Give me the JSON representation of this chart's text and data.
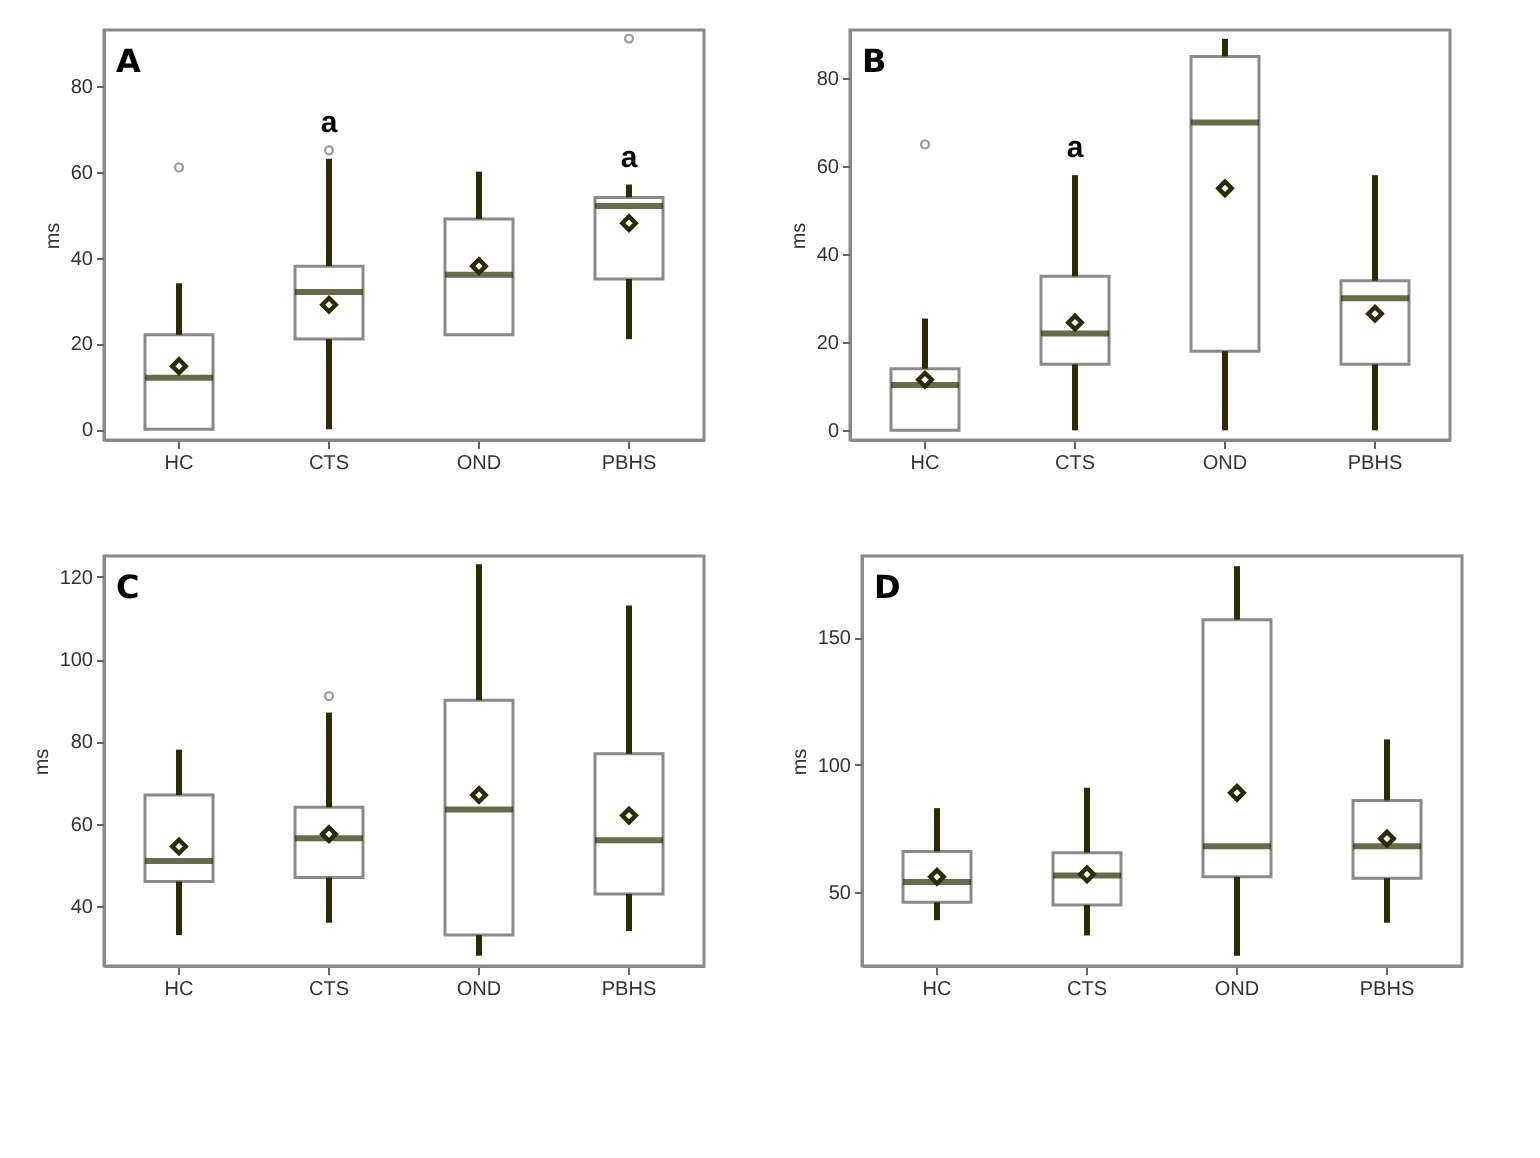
{
  "chart_data": [
    {
      "type": "box",
      "title": "A",
      "ylabel": "ms",
      "categories": [
        "HC",
        "CTS",
        "OND",
        "PBHS"
      ],
      "marker": "diamond",
      "ylim": [
        -2.5,
        93
      ],
      "yticks": [
        0,
        20,
        40,
        60,
        80
      ],
      "boxes": [
        {
          "low": 0,
          "q1": 0,
          "median": 12,
          "q3": 22,
          "high": 34,
          "mean": 14.7,
          "outliers": [
            61
          ]
        },
        {
          "low": 0,
          "q1": 21,
          "median": 32,
          "q3": 38,
          "high": 63,
          "mean": 29,
          "outliers": [
            65
          ]
        },
        {
          "low": 22,
          "q1": 22,
          "median": 36,
          "q3": 49,
          "high": 60,
          "mean": 38
        },
        {
          "low": 21,
          "q1": 35,
          "median": 52,
          "q3": 54,
          "high": 57,
          "mean": 48,
          "outliers": [
            91
          ]
        }
      ],
      "annotations": [
        {
          "text": "a",
          "x": "CTS",
          "y": 65
        },
        {
          "text": "a",
          "x": "PBHS",
          "y": 57
        }
      ]
    },
    {
      "type": "box",
      "title": "B",
      "ylabel": "ms",
      "categories": [
        "HC",
        "CTS",
        "OND",
        "PBHS"
      ],
      "marker": "diamond",
      "ylim": [
        -2.2,
        91
      ],
      "yticks": [
        0,
        20,
        40,
        60,
        80
      ],
      "boxes": [
        {
          "low": 0,
          "q1": 0,
          "median": 10.3,
          "q3": 14,
          "high": 25.4,
          "mean": 11.5,
          "outliers": [
            65
          ]
        },
        {
          "low": 0,
          "q1": 15,
          "median": 22,
          "q3": 35,
          "high": 58,
          "mean": 24.5
        },
        {
          "low": 0,
          "q1": 18,
          "median": 70,
          "q3": 85,
          "high": 89,
          "mean": 55
        },
        {
          "low": 0,
          "q1": 15,
          "median": 30,
          "q3": 34,
          "high": 58,
          "mean": 26.5
        }
      ],
      "annotations": [
        {
          "text": "a",
          "x": "CTS",
          "y": 58
        }
      ]
    },
    {
      "type": "box",
      "title": "C",
      "ylabel": "ms",
      "categories": [
        "HC",
        "CTS",
        "OND",
        "PBHS"
      ],
      "marker": "diamond",
      "ylim": [
        25.5,
        125
      ],
      "yticks": [
        40,
        60,
        80,
        100,
        120
      ],
      "boxes": [
        {
          "low": 33,
          "q1": 46,
          "median": 51,
          "q3": 67,
          "high": 78,
          "mean": 54.5
        },
        {
          "low": 36,
          "q1": 47,
          "median": 56.5,
          "q3": 64,
          "high": 87,
          "mean": 57.5,
          "outliers": [
            91
          ]
        },
        {
          "low": 28,
          "q1": 33,
          "median": 63.5,
          "q3": 90,
          "high": 123,
          "mean": 67
        },
        {
          "low": 34,
          "q1": 43,
          "median": 56,
          "q3": 77,
          "high": 113,
          "mean": 62
        }
      ]
    },
    {
      "type": "box",
      "title": "D",
      "ylabel": "ms",
      "categories": [
        "HC",
        "CTS",
        "OND",
        "PBHS"
      ],
      "marker": "diamond",
      "ylim": [
        21,
        182
      ],
      "yticks": [
        50,
        100,
        150
      ],
      "boxes": [
        {
          "low": 39,
          "q1": 46,
          "median": 54,
          "q3": 66,
          "high": 83,
          "mean": 56
        },
        {
          "low": 33,
          "q1": 45,
          "median": 56.5,
          "q3": 65.5,
          "high": 91,
          "mean": 57
        },
        {
          "low": 25,
          "q1": 56,
          "median": 68,
          "q3": 157,
          "high": 178,
          "mean": 89
        },
        {
          "low": 38,
          "q1": 55.5,
          "median": 68,
          "q3": 86,
          "high": 110,
          "mean": 71
        }
      ]
    }
  ]
}
